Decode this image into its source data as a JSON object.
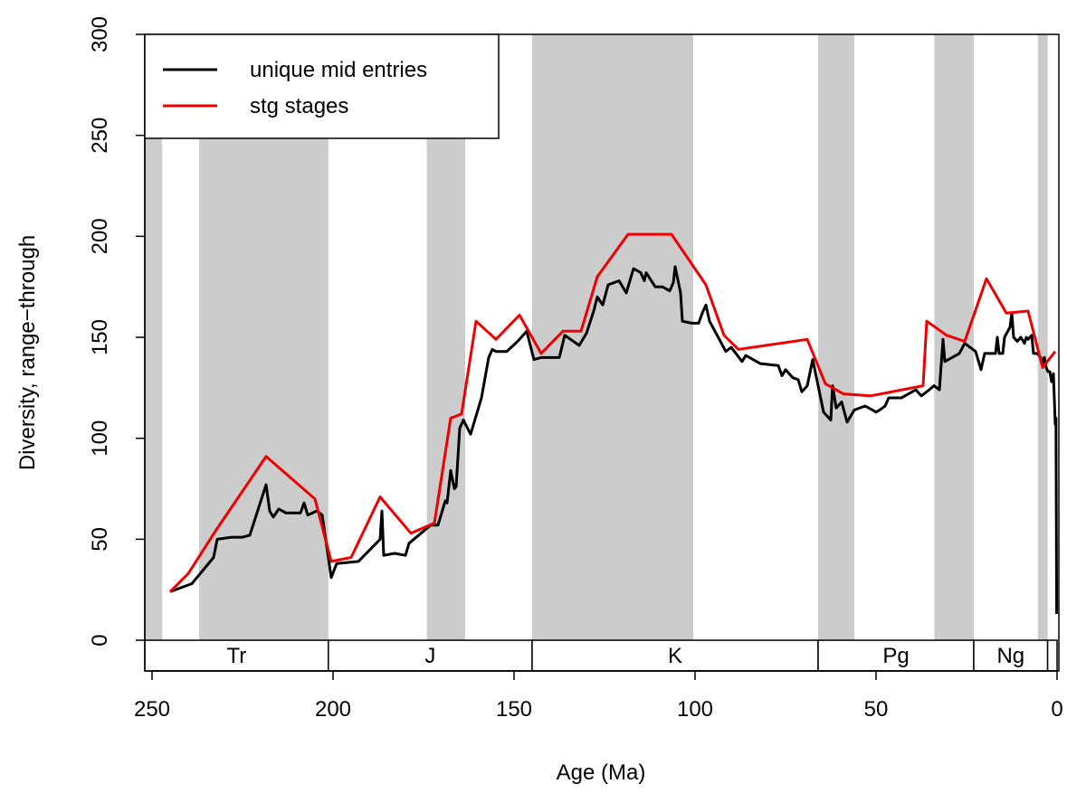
{
  "chart_data": {
    "type": "line",
    "xlabel": "Age (Ma)",
    "ylabel": "Diversity, range−through",
    "xlim": [
      252,
      -0.5
    ],
    "ylim": [
      -15.2,
      300
    ],
    "xticks": [
      250,
      200,
      150,
      100,
      50,
      0
    ],
    "yticks": [
      0,
      50,
      100,
      150,
      200,
      250,
      300
    ],
    "legend": "top-left",
    "shaded_intervals": [
      [
        252,
        247.2
      ],
      [
        237,
        201.3
      ],
      [
        174.1,
        163.5
      ],
      [
        145,
        100.5
      ],
      [
        66,
        56
      ],
      [
        33.9,
        23
      ],
      [
        5.3,
        2.6
      ]
    ],
    "shade_color": "#cccccc",
    "periods": [
      {
        "name": "Tr",
        "start": 252,
        "end": 201.3
      },
      {
        "name": "J",
        "start": 201.3,
        "end": 145
      },
      {
        "name": "K",
        "start": 145,
        "end": 66
      },
      {
        "name": "Pg",
        "start": 66,
        "end": 23
      },
      {
        "name": "Ng",
        "start": 23,
        "end": 2.6
      },
      {
        "name": null,
        "start": 2.6,
        "end": 0
      }
    ],
    "series": [
      {
        "name": "unique mid entries",
        "color": "#000000",
        "x": [
          245,
          239,
          233,
          232,
          228,
          225,
          223,
          218.5,
          217.5,
          216.5,
          215,
          213,
          209,
          208,
          207,
          204.5,
          203,
          200.5,
          199,
          193,
          187,
          186.5,
          186,
          183,
          180,
          179,
          173,
          171,
          169,
          168.5,
          167.5,
          166.5,
          166,
          165,
          164,
          162,
          159,
          157,
          156,
          155,
          152,
          149,
          146.5,
          144.5,
          142.5,
          137.5,
          136,
          132,
          130,
          128,
          127,
          125.5,
          124,
          121,
          119,
          117,
          115,
          114,
          113.5,
          111,
          109,
          107,
          106,
          105.5,
          104,
          103.5,
          101,
          99,
          98,
          97,
          96,
          93,
          91.5,
          90,
          87,
          86,
          82,
          77,
          76,
          75,
          73,
          71.5,
          70.5,
          69,
          67.5,
          64.5,
          62.5,
          62,
          61,
          59.5,
          58,
          56,
          53,
          50,
          49,
          47.5,
          46.5,
          43,
          41,
          39,
          37.5,
          36,
          34,
          32.5,
          31.5,
          31,
          29,
          27,
          25.5,
          24,
          22.5,
          21,
          20,
          18.5,
          17,
          16.5,
          16,
          15,
          14.5,
          13,
          12.5,
          12,
          11,
          10,
          9,
          8.5,
          8,
          7,
          6.5,
          5.5,
          4.5,
          4,
          3.5,
          3,
          2.5,
          2,
          1.5,
          1,
          0.8,
          0.5,
          0.3,
          0.1
        ],
        "values": [
          24,
          28,
          41,
          50,
          51,
          51,
          52,
          77,
          64,
          61,
          65,
          63,
          63,
          68,
          62,
          64,
          62,
          31,
          38,
          39,
          50,
          64,
          42,
          43,
          42,
          48,
          57,
          57,
          69,
          68,
          84,
          75,
          76,
          105,
          109,
          102,
          120,
          140,
          144,
          143,
          143,
          148,
          153,
          139,
          140,
          140,
          151,
          146,
          152,
          163,
          170,
          166,
          176,
          178,
          172,
          184,
          182,
          178,
          182,
          175,
          175,
          173,
          177,
          185,
          172,
          158,
          157,
          157,
          162,
          166,
          158,
          148,
          143,
          145,
          138,
          141,
          137,
          136,
          131,
          134,
          130,
          129,
          123,
          126,
          139,
          113,
          109,
          126,
          115,
          118,
          108,
          114,
          116,
          113,
          114,
          116,
          120,
          120,
          122,
          124,
          121,
          123,
          126,
          124,
          149,
          138,
          140,
          142,
          147,
          145,
          143,
          134,
          142,
          142,
          142,
          150,
          142,
          142,
          150,
          155,
          162,
          150,
          148,
          150,
          147,
          150,
          149,
          151,
          142,
          142,
          140,
          137,
          140,
          135,
          133,
          133,
          128,
          132,
          122,
          107,
          110,
          13
        ]
      },
      {
        "name": "stg stages",
        "color": "#ee0000",
        "x": [
          245,
          240,
          232.5,
          218.5,
          205,
          200.5,
          195,
          187,
          178.5,
          172,
          167.5,
          164.5,
          160.5,
          155,
          148.5,
          142.5,
          136.5,
          131.5,
          127,
          118.5,
          106.5,
          97,
          92,
          88,
          69,
          64,
          59,
          51.5,
          37,
          36,
          30.5,
          25.5,
          19.5,
          14,
          8,
          4,
          0.5
        ],
        "values": [
          24,
          33,
          54,
          91,
          70,
          39,
          41,
          71,
          53,
          58,
          110,
          112,
          158,
          149,
          161,
          142,
          153,
          153,
          180,
          201,
          201,
          176,
          151,
          144,
          149,
          127,
          122,
          121,
          126,
          158,
          151,
          148,
          179,
          162,
          163,
          135,
          143
        ]
      }
    ]
  }
}
